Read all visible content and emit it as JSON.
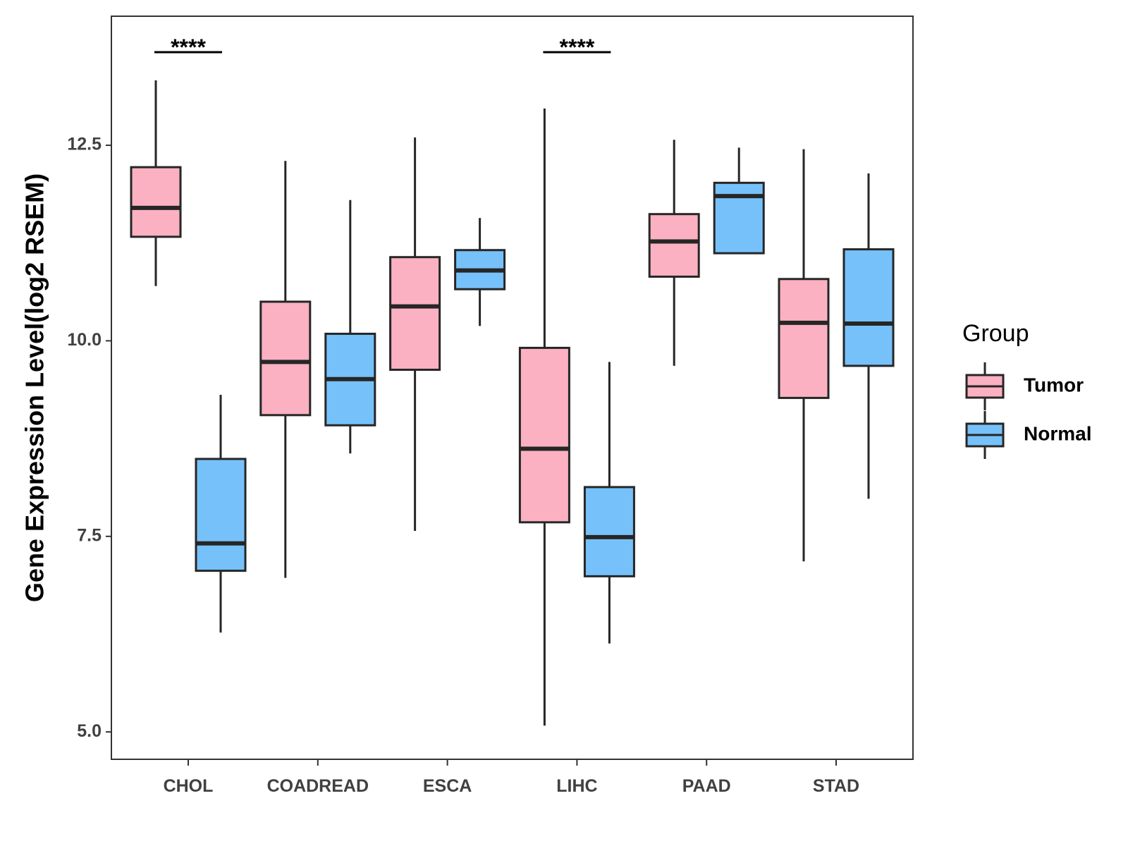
{
  "chart_data": {
    "type": "boxplot",
    "title": "",
    "xlabel": "",
    "ylabel": "Gene Expression Level(log2 RSEM)",
    "ylim": [
      4.65,
      14.15
    ],
    "y_ticks": [
      {
        "value": 5.0,
        "label": "5.0"
      },
      {
        "value": 7.5,
        "label": "7.5"
      },
      {
        "value": 10.0,
        "label": "10.0"
      },
      {
        "value": 12.5,
        "label": "12.5"
      }
    ],
    "grid": false,
    "categories": [
      "CHOL",
      "COADREAD",
      "ESCA",
      "LIHC",
      "PAAD",
      "STAD"
    ],
    "legend": {
      "title": "Group",
      "placement": "right",
      "entries": [
        {
          "name": "Tumor",
          "color": "#fbb1c2"
        },
        {
          "name": "Normal",
          "color": "#76c1f9"
        }
      ]
    },
    "series": [
      {
        "name": "Tumor",
        "color": "#fbb1c2",
        "boxes": [
          {
            "category": "CHOL",
            "min": 10.7,
            "q1": 11.33,
            "median": 11.7,
            "q3": 12.22,
            "max": 13.33
          },
          {
            "category": "COADREAD",
            "min": 6.97,
            "q1": 9.05,
            "median": 9.73,
            "q3": 10.5,
            "max": 12.3
          },
          {
            "category": "ESCA",
            "min": 7.57,
            "q1": 9.63,
            "median": 10.44,
            "q3": 11.07,
            "max": 12.6
          },
          {
            "category": "LIHC",
            "min": 5.08,
            "q1": 7.68,
            "median": 8.62,
            "q3": 9.91,
            "max": 12.97
          },
          {
            "category": "PAAD",
            "min": 9.68,
            "q1": 10.82,
            "median": 11.27,
            "q3": 11.62,
            "max": 12.57
          },
          {
            "category": "STAD",
            "min": 7.18,
            "q1": 9.27,
            "median": 10.23,
            "q3": 10.79,
            "max": 12.45
          }
        ]
      },
      {
        "name": "Normal",
        "color": "#76c1f9",
        "boxes": [
          {
            "category": "CHOL",
            "min": 6.27,
            "q1": 7.06,
            "median": 7.41,
            "q3": 8.49,
            "max": 9.31
          },
          {
            "category": "COADREAD",
            "min": 8.56,
            "q1": 8.92,
            "median": 9.51,
            "q3": 10.09,
            "max": 11.8
          },
          {
            "category": "ESCA",
            "min": 10.19,
            "q1": 10.66,
            "median": 10.9,
            "q3": 11.16,
            "max": 11.57
          },
          {
            "category": "LIHC",
            "min": 6.13,
            "q1": 6.99,
            "median": 7.49,
            "q3": 8.13,
            "max": 9.73
          },
          {
            "category": "PAAD",
            "min": 11.12,
            "q1": 11.12,
            "median": 11.85,
            "q3": 12.02,
            "max": 12.47
          },
          {
            "category": "STAD",
            "min": 7.98,
            "q1": 9.68,
            "median": 10.22,
            "q3": 11.17,
            "max": 12.14
          }
        ]
      }
    ],
    "annotations": [
      {
        "category": "CHOL",
        "text": "****"
      },
      {
        "category": "LIHC",
        "text": "****"
      }
    ]
  },
  "style": {
    "outline_color": "#262626",
    "axis_color": "#333333"
  }
}
